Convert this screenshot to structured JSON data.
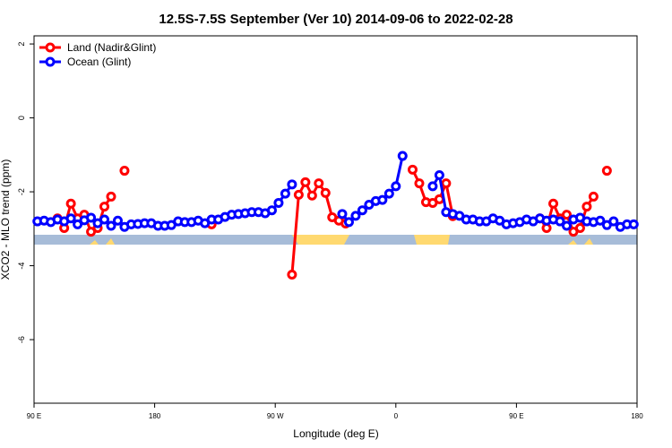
{
  "chart_data": {
    "type": "line",
    "title": "12.5S-7.5S September (Ver 10)   2014-09-06 to 2022-02-28",
    "x_label": "Longitude (deg E)",
    "y_label": "XCO2 - MLO trend (ppm)",
    "xlim": [
      90,
      540
    ],
    "ylim": [
      -7.72,
      2.22
    ],
    "xticks": [
      {
        "value": 90,
        "label": "90 E"
      },
      180,
      {
        "value": 270,
        "label": "90 W"
      },
      {
        "value": 360,
        "label": "0"
      },
      {
        "value": 450,
        "label": "90 E"
      },
      {
        "value": 540,
        "label": "180"
      }
    ],
    "yticks": [
      -6,
      -4,
      -2,
      0,
      2
    ],
    "legend": "top-left",
    "series": [
      {
        "name": "Land (Nadir&Glint)",
        "color": "#ff0000",
        "x": [
          107.5,
          112.5,
          117.5,
          122.5,
          127.5,
          132.5,
          137.5,
          142.5,
          147.5,
          152.5,
          157.5,
          190,
          222.5,
          250,
          282.5,
          287.5,
          292.5,
          297.5,
          302.5,
          307.5,
          312.5,
          317.5,
          322.5,
          345,
          372.5,
          377.5,
          382.5,
          387.5,
          392.5,
          397.5,
          402.5,
          435,
          467.5,
          472.5,
          477.5,
          482.5,
          487.5,
          492.5,
          497.5,
          502.5,
          507.5,
          512.5,
          517.5
        ],
        "values": [
          -2.72,
          -2.98,
          -2.32,
          -2.72,
          -2.62,
          -3.08,
          -2.98,
          -2.4,
          -2.13,
          null,
          -1.43,
          null,
          -2.88,
          null,
          -4.24,
          -2.08,
          -1.74,
          -2.1,
          -1.77,
          -2.03,
          -2.69,
          -2.78,
          -2.86,
          null,
          -1.4,
          -1.77,
          -2.28,
          -2.3,
          -2.2,
          -1.77,
          -2.66,
          null,
          -2.72,
          -2.98,
          -2.32,
          -2.72,
          -2.62,
          -3.08,
          -2.98,
          -2.4,
          -2.13,
          null,
          -1.43
        ]
      },
      {
        "name": "Ocean (Glint)",
        "color": "#0000ff",
        "x": [
          92.5,
          97.5,
          102.5,
          107.5,
          112.5,
          117.5,
          122.5,
          127.5,
          132.5,
          137.5,
          142.5,
          147.5,
          152.5,
          157.5,
          162.5,
          167.5,
          172.5,
          177.5,
          182.5,
          187.5,
          192.5,
          197.5,
          202.5,
          207.5,
          212.5,
          217.5,
          222.5,
          227.5,
          232.5,
          237.5,
          242.5,
          247.5,
          252.5,
          257.5,
          262.5,
          267.5,
          272.5,
          277.5,
          282.5,
          300,
          320,
          325,
          330,
          335,
          340,
          345,
          350,
          355,
          360,
          365,
          375,
          387.5,
          392.5,
          397.5,
          402.5,
          407.5,
          412.5,
          417.5,
          422.5,
          427.5,
          432.5,
          437.5,
          442.5,
          447.5,
          452.5,
          457.5,
          462.5,
          467.5,
          472.5,
          477.5,
          482.5,
          487.5,
          492.5,
          497.5,
          502.5,
          507.5,
          512.5,
          517.5,
          522.5,
          527.5,
          532.5,
          537.5
        ],
        "values": [
          -2.8,
          -2.78,
          -2.82,
          -2.75,
          -2.8,
          -2.72,
          -2.88,
          -2.77,
          -2.7,
          -2.85,
          -2.75,
          -2.92,
          -2.78,
          -2.95,
          -2.88,
          -2.87,
          -2.85,
          -2.85,
          -2.92,
          -2.92,
          -2.9,
          -2.8,
          -2.82,
          -2.82,
          -2.78,
          -2.85,
          -2.75,
          -2.75,
          -2.68,
          -2.62,
          -2.6,
          -2.58,
          -2.55,
          -2.55,
          -2.58,
          -2.5,
          -2.3,
          -2.05,
          -1.8,
          null,
          -2.6,
          -2.82,
          -2.65,
          -2.5,
          -2.35,
          -2.25,
          -2.22,
          -2.05,
          -1.85,
          -1.03,
          null,
          -1.85,
          -1.55,
          -2.55,
          -2.6,
          -2.65,
          -2.75,
          -2.75,
          -2.8,
          -2.8,
          -2.72,
          -2.78,
          -2.88,
          -2.85,
          -2.82,
          -2.75,
          -2.8,
          -2.72,
          -2.78,
          -2.75,
          -2.8,
          -2.92,
          -2.75,
          -2.7,
          -2.8,
          -2.82,
          -2.78,
          -2.9,
          -2.8,
          -2.95,
          -2.88,
          -2.88
        ]
      }
    ]
  }
}
